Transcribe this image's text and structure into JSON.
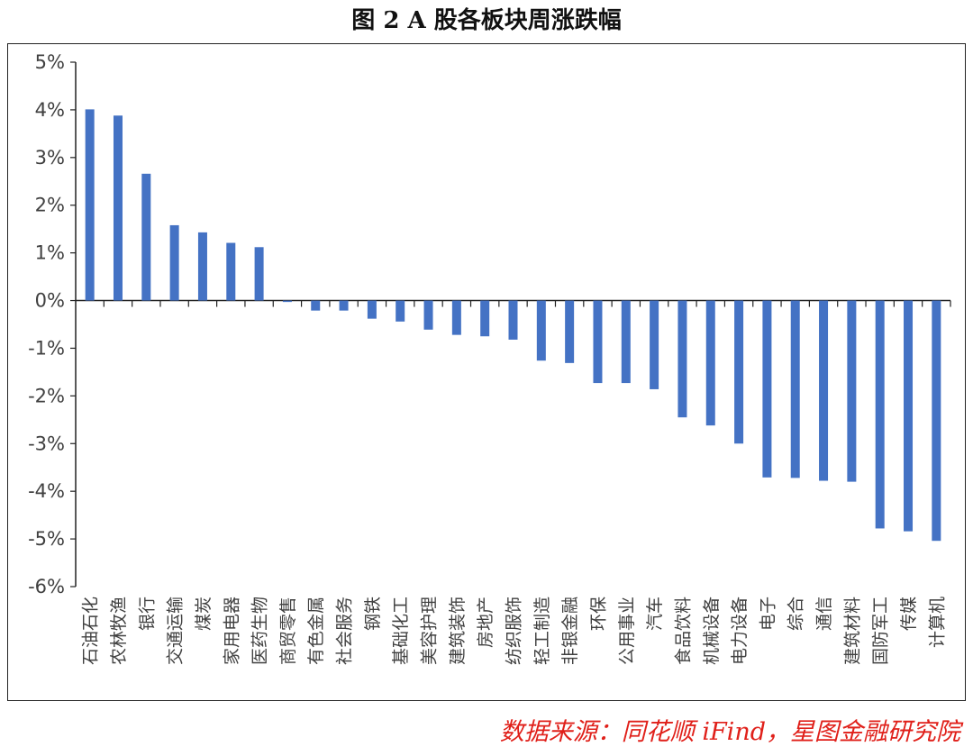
{
  "chart_data": {
    "type": "bar",
    "title": "图 2 A 股各板块周涨跌幅",
    "source": "数据来源：同花顺 iFind，星图金融研究院",
    "xlabel": "",
    "ylabel": "",
    "ylim": [
      -6,
      5
    ],
    "yticks": [
      "5%",
      "4%",
      "3%",
      "2%",
      "1%",
      "0%",
      "-1%",
      "-2%",
      "-3%",
      "-4%",
      "-5%",
      "-6%"
    ],
    "grid": false,
    "bar_color": "#4472C4",
    "categories": [
      "石油石化",
      "农林牧渔",
      "银行",
      "交通运输",
      "煤炭",
      "家用电器",
      "医药生物",
      "商贸零售",
      "有色金属",
      "社会服务",
      "钢铁",
      "基础化工",
      "美容护理",
      "建筑装饰",
      "房地产",
      "纺织服饰",
      "轻工制造",
      "非银金融",
      "环保",
      "公用事业",
      "汽车",
      "食品饮料",
      "机械设备",
      "电力设备",
      "电子",
      "综合",
      "通信",
      "建筑材料",
      "国防军工",
      "传媒",
      "计算机"
    ],
    "values": [
      4.01,
      3.88,
      2.66,
      1.58,
      1.43,
      1.21,
      1.12,
      -0.03,
      -0.21,
      -0.21,
      -0.38,
      -0.44,
      -0.61,
      -0.72,
      -0.75,
      -0.82,
      -1.26,
      -1.31,
      -1.73,
      -1.73,
      -1.86,
      -2.45,
      -2.62,
      -3.0,
      -3.71,
      -3.72,
      -3.78,
      -3.8,
      -4.78,
      -4.84,
      -5.04
    ]
  }
}
